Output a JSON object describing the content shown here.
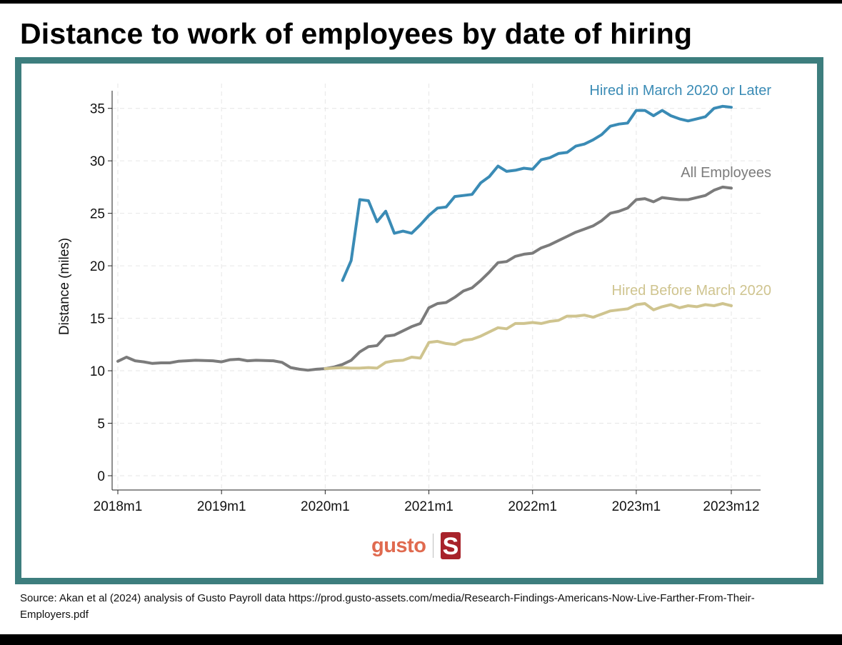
{
  "page": {
    "title": "Distance to work of employees by date of hiring",
    "source": "Source: Akan et al (2024) analysis of Gusto Payroll data https://prod.gusto-assets.com/media/Research-Findings-Americans-Now-Live-Farther-From-Their-Employers.pdf"
  },
  "logos": {
    "gusto": "gusto",
    "stanford": "S"
  },
  "colors": {
    "hired_after": "#3a8bb5",
    "all": "#7b7b7b",
    "hired_before": "#cfc48f",
    "frame": "#3d7e7e",
    "gusto": "#e06a4f",
    "stanford": "#a8232b"
  },
  "chart_data": {
    "type": "line",
    "title": "",
    "xlabel": "",
    "ylabel": "Distance (miles)",
    "ylim": [
      0,
      36
    ],
    "xlim": [
      0,
      71
    ],
    "yticks": [
      0,
      5,
      10,
      15,
      20,
      25,
      30,
      35
    ],
    "xticks": [
      {
        "pos": 0,
        "label": "2018m1"
      },
      {
        "pos": 12,
        "label": "2019m1"
      },
      {
        "pos": 24,
        "label": "2020m1"
      },
      {
        "pos": 36,
        "label": "2021m1"
      },
      {
        "pos": 48,
        "label": "2022m1"
      },
      {
        "pos": 60,
        "label": "2023m1"
      },
      {
        "pos": 71,
        "label": "2023m12"
      }
    ],
    "grid": true,
    "series": [
      {
        "name": "All Employees",
        "key": "all",
        "start": 0,
        "values": [
          10.9,
          11.3,
          10.95,
          10.85,
          10.7,
          10.75,
          10.75,
          10.9,
          10.95,
          11.0,
          10.98,
          10.95,
          10.85,
          11.05,
          11.1,
          10.95,
          11.0,
          10.97,
          10.95,
          10.8,
          10.3,
          10.15,
          10.05,
          10.15,
          10.2,
          10.35,
          10.6,
          11.0,
          11.8,
          12.3,
          12.4,
          13.3,
          13.4,
          13.8,
          14.2,
          14.5,
          16.0,
          16.4,
          16.5,
          17.0,
          17.6,
          17.9,
          18.6,
          19.4,
          20.3,
          20.4,
          20.9,
          21.1,
          21.2,
          21.7,
          22.0,
          22.4,
          22.8,
          23.2,
          23.5,
          23.8,
          24.3,
          25.0,
          25.2,
          25.5,
          26.3,
          26.4,
          26.1,
          26.5,
          26.4,
          26.3,
          26.3,
          26.5,
          26.7,
          27.2,
          27.5,
          27.4
        ]
      },
      {
        "name": "Hired in March 2020 or Later",
        "key": "hired_after",
        "start": 26,
        "values": [
          18.6,
          20.5,
          26.3,
          26.2,
          24.2,
          25.2,
          23.1,
          23.3,
          23.1,
          23.9,
          24.8,
          25.5,
          25.6,
          26.6,
          26.7,
          26.8,
          27.9,
          28.5,
          29.5,
          29.0,
          29.1,
          29.3,
          29.2,
          30.1,
          30.3,
          30.7,
          30.8,
          31.4,
          31.6,
          32.0,
          32.5,
          33.3,
          33.5,
          33.6,
          34.8,
          34.8,
          34.3,
          34.8,
          34.3,
          34.0,
          33.8,
          34.0,
          34.2,
          35.0,
          35.2,
          35.1
        ]
      },
      {
        "name": "Hired Before March 2020",
        "key": "hired_before",
        "start": 24,
        "values": [
          10.2,
          10.25,
          10.3,
          10.25,
          10.25,
          10.3,
          10.25,
          10.8,
          10.95,
          11.0,
          11.3,
          11.2,
          12.7,
          12.8,
          12.6,
          12.5,
          12.9,
          13.0,
          13.3,
          13.7,
          14.1,
          14.0,
          14.5,
          14.5,
          14.6,
          14.5,
          14.7,
          14.8,
          15.2,
          15.2,
          15.3,
          15.1,
          15.4,
          15.7,
          15.8,
          15.9,
          16.3,
          16.4,
          15.8,
          16.1,
          16.3,
          16.0,
          16.2,
          16.1,
          16.3,
          16.2,
          16.4,
          16.2
        ]
      }
    ],
    "annotations": [
      {
        "series": "hired_after",
        "text": "Hired in March 2020 or Later"
      },
      {
        "series": "all",
        "text": "All Employees"
      },
      {
        "series": "hired_before",
        "text": "Hired Before March 2020"
      }
    ]
  }
}
